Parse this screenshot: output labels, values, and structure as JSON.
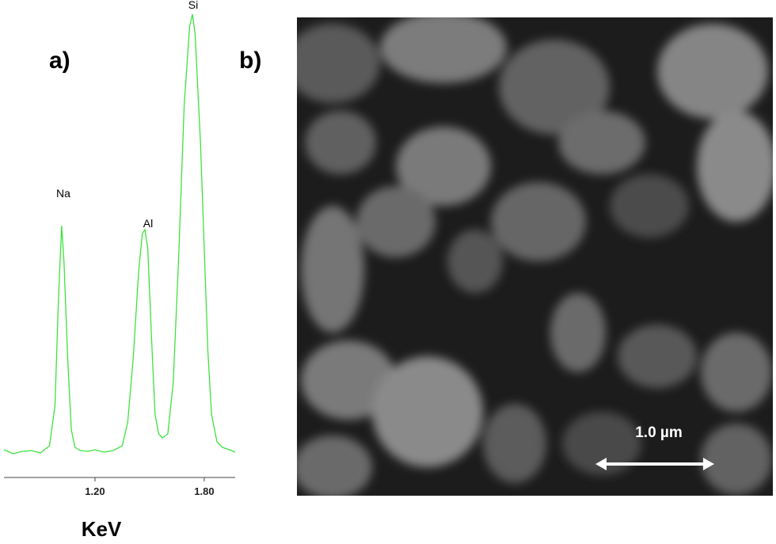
{
  "chart_data": {
    "type": "line",
    "panel_label": "a)",
    "x_label": "KeV",
    "x": [
      0.7,
      0.75,
      0.8,
      0.85,
      0.9,
      0.95,
      0.98,
      1.0,
      1.017,
      1.03,
      1.05,
      1.07,
      1.09,
      1.12,
      1.16,
      1.2,
      1.25,
      1.3,
      1.35,
      1.38,
      1.41,
      1.44,
      1.46,
      1.474,
      1.49,
      1.51,
      1.53,
      1.55,
      1.57,
      1.6,
      1.63,
      1.66,
      1.69,
      1.72,
      1.735,
      1.75,
      1.78,
      1.8,
      1.82,
      1.84,
      1.87,
      1.9,
      1.94,
      1.97
    ],
    "series": [
      {
        "color": "#3ee23e",
        "values": [
          35,
          30,
          33,
          34,
          31,
          40,
          90,
          230,
          318,
          270,
          150,
          60,
          38,
          34,
          33,
          35,
          32,
          34,
          40,
          70,
          150,
          260,
          308,
          313,
          290,
          180,
          80,
          55,
          50,
          55,
          120,
          280,
          470,
          570,
          585,
          560,
          420,
          290,
          160,
          80,
          45,
          38,
          35,
          32
        ]
      }
    ],
    "peak_labels": [
      "Na",
      "Al",
      "Si"
    ],
    "xlim": [
      0.7,
      1.97
    ],
    "ylim": [
      0,
      600
    ],
    "xticks": [
      {
        "value": 1.2,
        "label": "1.20"
      },
      {
        "value": 1.8,
        "label": "1.80"
      }
    ]
  },
  "image_panel": {
    "panel_label": "b)",
    "scale_bar": "1.0 µm"
  }
}
